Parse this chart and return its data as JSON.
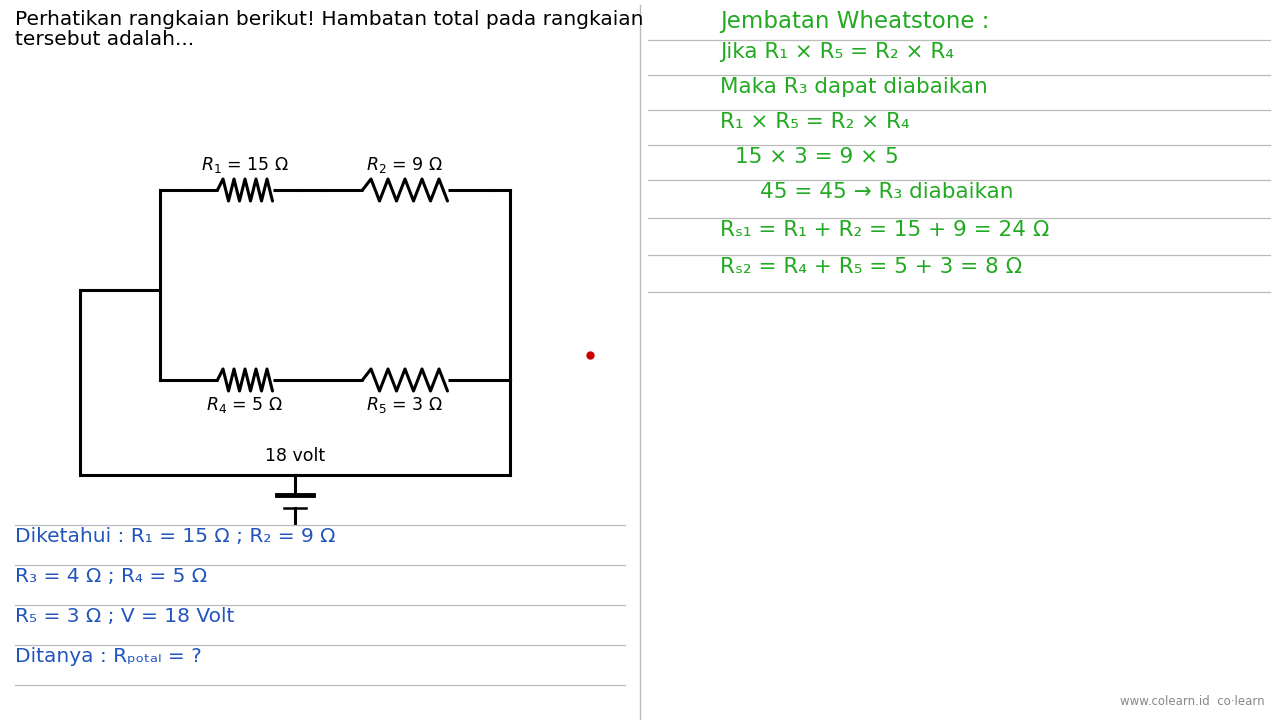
{
  "bg_color": "#ffffff",
  "title_text1": "Perhatikan rangkaian berikut! Hambatan total pada rangkaian",
  "title_text2": "tersebut adalah...",
  "title_color": "#000000",
  "title_fontsize": 14.5,
  "green_color": "#22aa22",
  "blue_color": "#2255bb",
  "circuit_color": "#000000",
  "red_dot_color": "#cc0000",
  "divider_color": "#bbbbbb",
  "logo_color": "#888888",
  "logo_text": "www.colearn.id  co·learn"
}
